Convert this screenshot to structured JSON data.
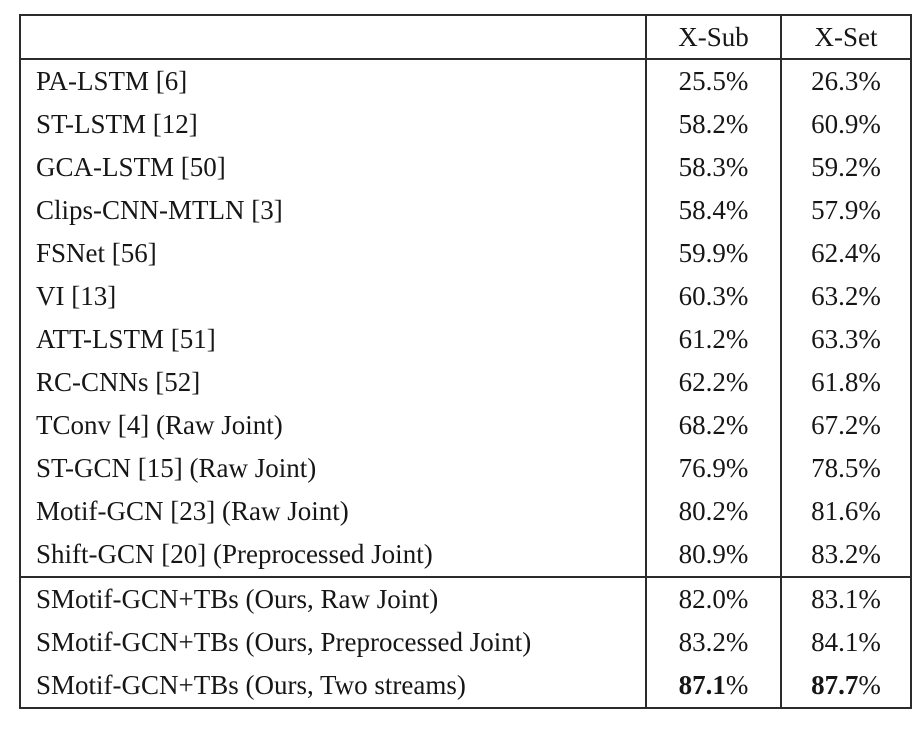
{
  "chart_data": {
    "type": "table",
    "columns": [
      "",
      "X-Sub",
      "X-Set"
    ],
    "rows": [
      {
        "method": "PA-LSTM [6]",
        "xsub": "25.5%",
        "xset": "26.3%",
        "bold": false,
        "ours": false
      },
      {
        "method": "ST-LSTM [12]",
        "xsub": "58.2%",
        "xset": "60.9%",
        "bold": false,
        "ours": false
      },
      {
        "method": "GCA-LSTM [50]",
        "xsub": "58.3%",
        "xset": "59.2%",
        "bold": false,
        "ours": false
      },
      {
        "method": "Clips-CNN-MTLN [3]",
        "xsub": "58.4%",
        "xset": "57.9%",
        "bold": false,
        "ours": false
      },
      {
        "method": "FSNet [56]",
        "xsub": "59.9%",
        "xset": "62.4%",
        "bold": false,
        "ours": false
      },
      {
        "method": "VI [13]",
        "xsub": "60.3%",
        "xset": "63.2%",
        "bold": false,
        "ours": false
      },
      {
        "method": "ATT-LSTM [51]",
        "xsub": "61.2%",
        "xset": "63.3%",
        "bold": false,
        "ours": false
      },
      {
        "method": "RC-CNNs [52]",
        "xsub": "62.2%",
        "xset": "61.8%",
        "bold": false,
        "ours": false
      },
      {
        "method": "TConv [4] (Raw Joint)",
        "xsub": "68.2%",
        "xset": "67.2%",
        "bold": false,
        "ours": false
      },
      {
        "method": "ST-GCN [15] (Raw Joint)",
        "xsub": "76.9%",
        "xset": "78.5%",
        "bold": false,
        "ours": false
      },
      {
        "method": "Motif-GCN [23] (Raw Joint)",
        "xsub": "80.2%",
        "xset": "81.6%",
        "bold": false,
        "ours": false
      },
      {
        "method": "Shift-GCN [20] (Preprocessed Joint)",
        "xsub": "80.9%",
        "xset": "83.2%",
        "bold": false,
        "ours": false
      },
      {
        "method": "SMotif-GCN+TBs (Ours, Raw Joint)",
        "xsub": "82.0%",
        "xset": "83.1%",
        "bold": false,
        "ours": true
      },
      {
        "method": "SMotif-GCN+TBs (Ours, Preprocessed Joint)",
        "xsub": "83.2%",
        "xset": "84.1%",
        "bold": false,
        "ours": true
      },
      {
        "method": "SMotif-GCN+TBs (Ours, Two streams)",
        "xsub": "87.1%",
        "xset": "87.7%",
        "bold": true,
        "ours": true
      }
    ],
    "ours_group_start_index": 12,
    "layout": {
      "grid": "off",
      "note_colors": {
        "text": "#161616",
        "border": "#2b2b2b",
        "background": "#ffffff"
      }
    }
  }
}
